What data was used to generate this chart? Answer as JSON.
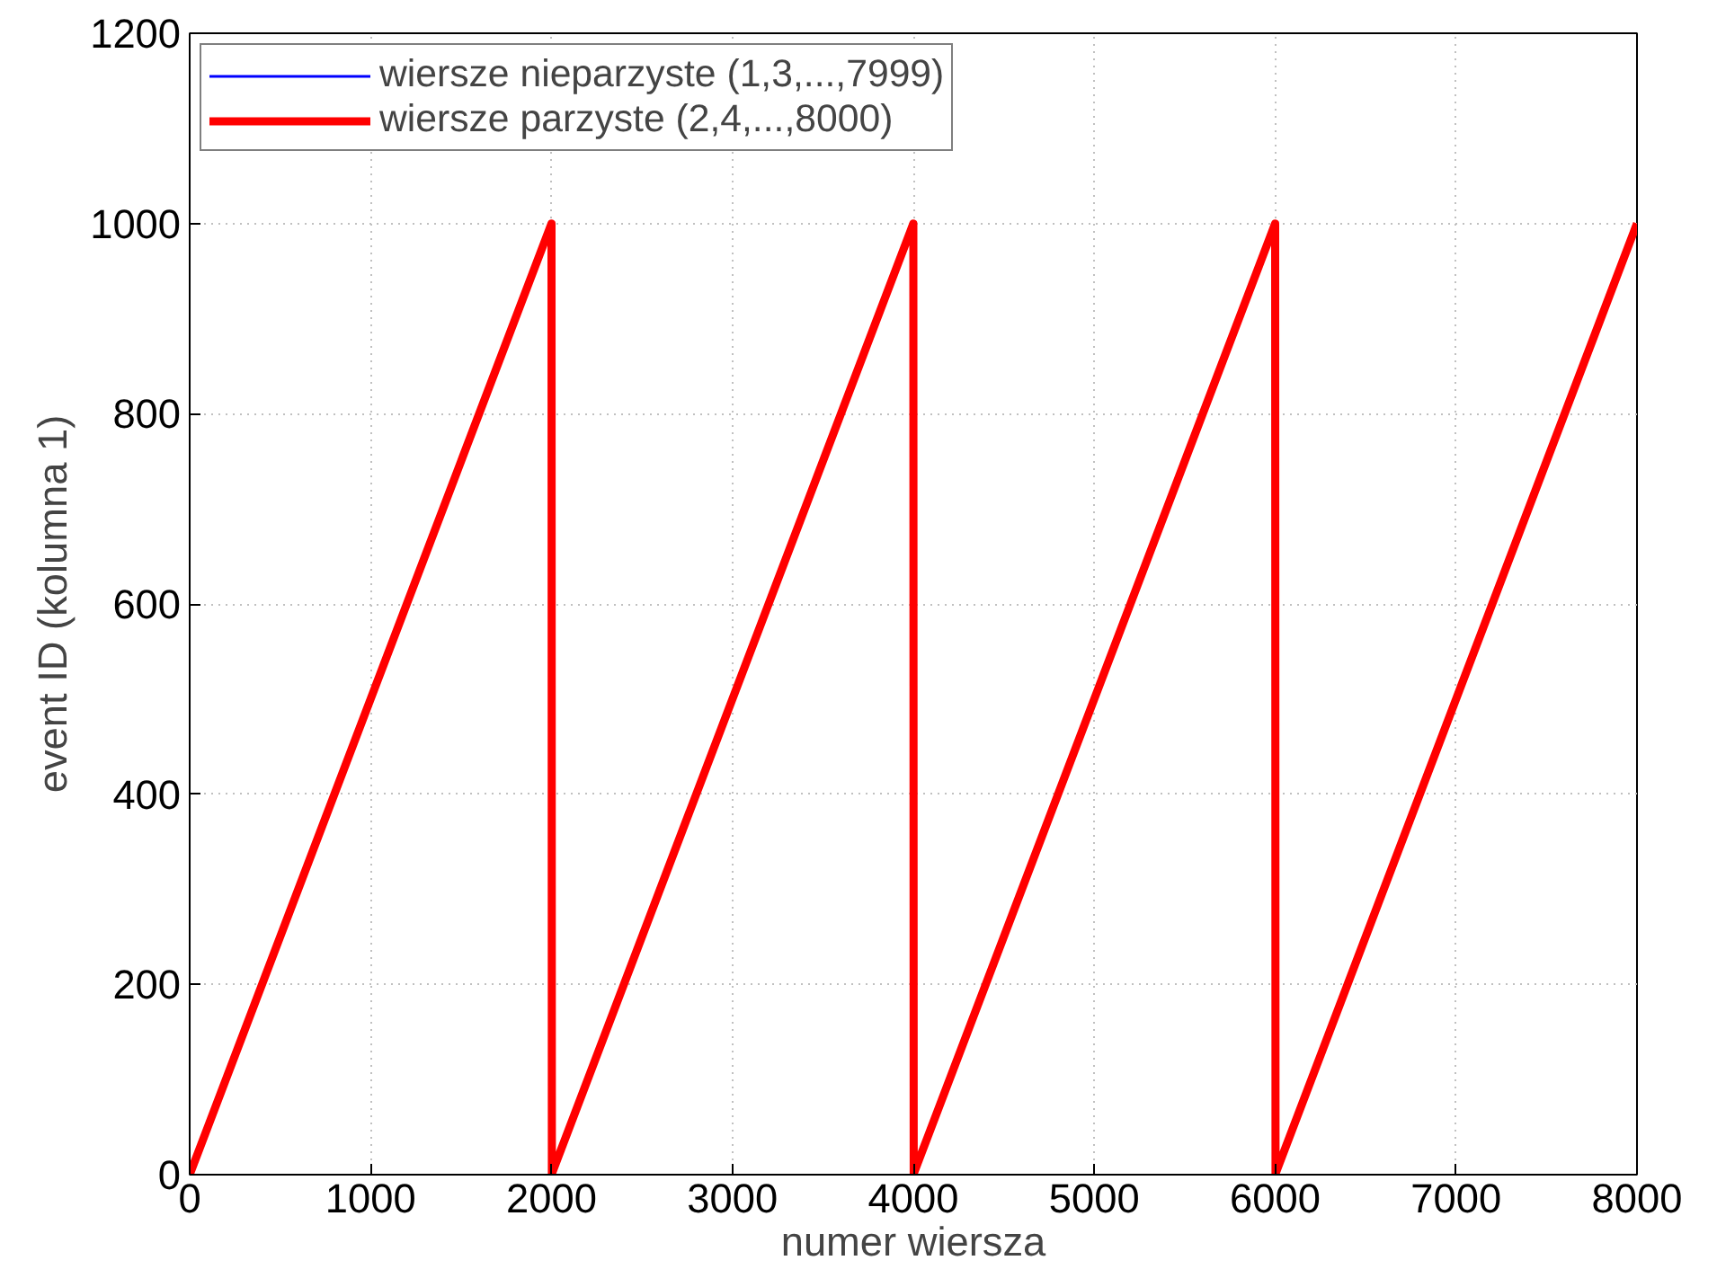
{
  "chart_data": {
    "type": "line",
    "xlabel": "numer wiersza",
    "ylabel": "event ID (kolumna 1)",
    "series": [
      {
        "name": "wiersze nieparzyste (1,3,...,7999)",
        "color": "#0000ff",
        "values": [
          null,
          null
        ]
      },
      {
        "name": "wiersze parzyste (2,4,...,8000)",
        "color": "#ff0000",
        "x": [
          2,
          2000,
          2002,
          4000,
          4002,
          6000,
          6002,
          8000
        ],
        "values": [
          1,
          1000,
          1,
          1000,
          1,
          1000,
          1,
          1000
        ]
      }
    ],
    "xlim": [
      0,
      8000
    ],
    "xticks": [
      0,
      1000,
      2000,
      3000,
      4000,
      5000,
      6000,
      7000,
      8000
    ],
    "ylim": [
      0,
      1200
    ],
    "yticks": [
      0,
      200,
      400,
      600,
      800,
      1000,
      1200
    ],
    "grid": true,
    "legend": "top left"
  }
}
